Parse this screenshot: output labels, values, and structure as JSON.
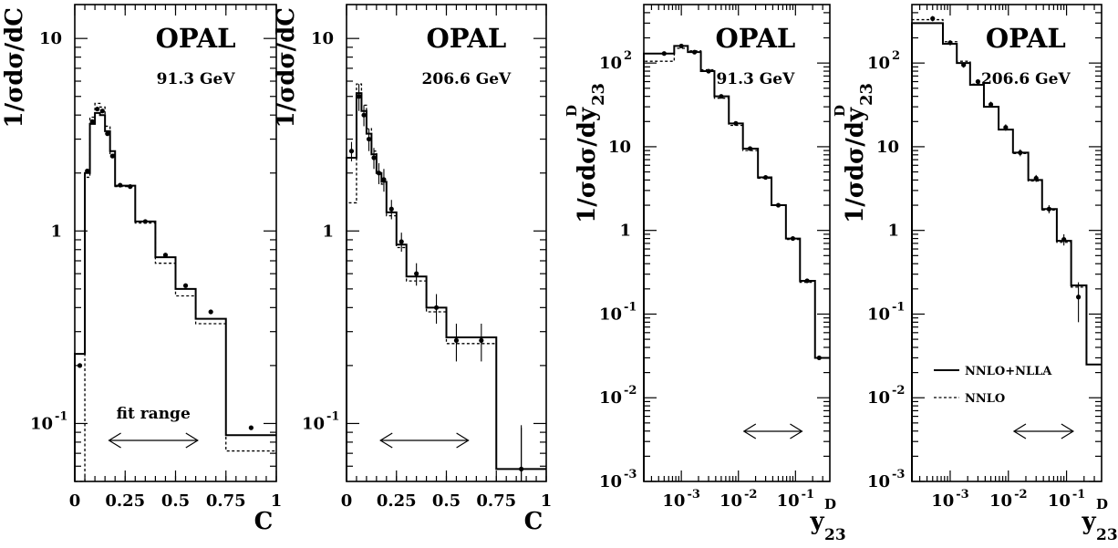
{
  "chart_data": [
    {
      "type": "line",
      "title": "OPAL",
      "subtitle": "91.3 GeV",
      "xlabel": "C",
      "ylabel": "1/σdσ/dC",
      "xlim": [
        0,
        1
      ],
      "ylim": [
        0.05,
        15
      ],
      "yscale": "log",
      "x_ticks": [
        {
          "v": 0,
          "t": "0"
        },
        {
          "v": 0.25,
          "t": "0.25"
        },
        {
          "v": 0.5,
          "t": "0.5"
        },
        {
          "v": 0.75,
          "t": "0.75"
        },
        {
          "v": 1,
          "t": "1"
        }
      ],
      "y_ticks": [
        {
          "v": 0.1,
          "t": "10",
          "exp": "-1"
        },
        {
          "v": 1,
          "t": "1",
          "exp": ""
        },
        {
          "v": 10,
          "t": "10",
          "exp": ""
        }
      ],
      "annotation": "fit range",
      "fit_range": [
        0.17,
        0.61
      ],
      "series": [
        {
          "style": "solid",
          "edges": [
            0,
            0.05,
            0.075,
            0.1,
            0.125,
            0.15,
            0.175,
            0.2,
            0.25,
            0.3,
            0.4,
            0.5,
            0.6,
            0.75,
            1
          ],
          "values": [
            0.23,
            2.0,
            3.6,
            4.1,
            4.0,
            3.3,
            2.6,
            1.72,
            1.72,
            1.12,
            0.73,
            0.5,
            0.35,
            0.087
          ]
        },
        {
          "style": "dashed",
          "edges": [
            0,
            0.05,
            0.075,
            0.1,
            0.125,
            0.15,
            0.175,
            0.2,
            0.25,
            0.3,
            0.4,
            0.5,
            0.6,
            0.75,
            1
          ],
          "values": [
            0.03,
            1.9,
            3.9,
            4.6,
            4.4,
            3.5,
            2.5,
            1.7,
            1.7,
            1.1,
            0.68,
            0.46,
            0.33,
            0.072
          ]
        },
        {
          "style": "points",
          "x": [
            0.025,
            0.062,
            0.087,
            0.112,
            0.137,
            0.162,
            0.187,
            0.225,
            0.275,
            0.35,
            0.45,
            0.55,
            0.675,
            0.875
          ],
          "y": [
            0.2,
            2.05,
            3.7,
            4.3,
            4.2,
            3.2,
            2.45,
            1.73,
            1.7,
            1.12,
            0.75,
            0.52,
            0.38,
            0.095
          ]
        }
      ]
    },
    {
      "type": "line",
      "title": "OPAL",
      "subtitle": "206.6 GeV",
      "xlabel": "C",
      "ylabel": "1/σdσ/dC",
      "xlim": [
        0,
        1
      ],
      "ylim": [
        0.05,
        15
      ],
      "yscale": "log",
      "x_ticks": [
        {
          "v": 0,
          "t": "0"
        },
        {
          "v": 0.25,
          "t": "0.25"
        },
        {
          "v": 0.5,
          "t": "0.5"
        },
        {
          "v": 0.75,
          "t": "0.75"
        },
        {
          "v": 1,
          "t": "1"
        }
      ],
      "y_ticks": [
        {
          "v": 0.1,
          "t": "10",
          "exp": "-1"
        },
        {
          "v": 1,
          "t": "1",
          "exp": ""
        },
        {
          "v": 10,
          "t": "10",
          "exp": ""
        }
      ],
      "fit_range": [
        0.17,
        0.61
      ],
      "series": [
        {
          "style": "solid",
          "edges": [
            0,
            0.05,
            0.075,
            0.1,
            0.125,
            0.15,
            0.175,
            0.2,
            0.25,
            0.3,
            0.4,
            0.5,
            0.6,
            0.75,
            1
          ],
          "values": [
            2.4,
            5.2,
            4.2,
            3.2,
            2.5,
            2.0,
            1.8,
            1.25,
            0.85,
            0.58,
            0.4,
            0.28,
            0.28,
            0.058
          ]
        },
        {
          "style": "dashed",
          "edges": [
            0,
            0.05,
            0.075,
            0.1,
            0.125,
            0.15,
            0.175,
            0.2,
            0.25,
            0.3,
            0.4,
            0.5,
            0.6,
            0.75,
            1
          ],
          "values": [
            1.4,
            5.8,
            4.5,
            3.4,
            2.6,
            2.0,
            1.75,
            1.2,
            0.82,
            0.55,
            0.38,
            0.26,
            0.26,
            0.058
          ]
        },
        {
          "style": "points",
          "x": [
            0.025,
            0.062,
            0.087,
            0.112,
            0.137,
            0.162,
            0.187,
            0.225,
            0.275,
            0.35,
            0.45,
            0.55,
            0.675,
            0.875
          ],
          "y": [
            2.6,
            5.0,
            4.0,
            3.0,
            2.4,
            2.0,
            1.85,
            1.3,
            0.88,
            0.6,
            0.4,
            0.27,
            0.27,
            0.058
          ],
          "err": [
            0.3,
            0.8,
            0.5,
            0.4,
            0.3,
            0.25,
            0.25,
            0.15,
            0.1,
            0.08,
            0.07,
            0.06,
            0.06,
            0.04
          ]
        }
      ]
    },
    {
      "type": "line",
      "title": "OPAL",
      "subtitle": "91.3 GeV",
      "xlabel": "y",
      "xlabel_sub": "23",
      "xlabel_sup": "D",
      "ylabel": "1/σdσ/dy",
      "ylabel_sub": "23",
      "ylabel_sup": "D",
      "xlim": [
        0.00022,
        0.4
      ],
      "ylim": [
        0.001,
        500
      ],
      "xscale": "log",
      "yscale": "log",
      "x_ticks": [
        {
          "v": 0.001,
          "t": "10",
          "exp": "-3"
        },
        {
          "v": 0.01,
          "t": "10",
          "exp": "-2"
        },
        {
          "v": 0.1,
          "t": "10",
          "exp": "-1"
        }
      ],
      "y_ticks": [
        {
          "v": 0.001,
          "t": "10",
          "exp": "-3"
        },
        {
          "v": 0.01,
          "t": "10",
          "exp": "-2"
        },
        {
          "v": 0.1,
          "t": "10",
          "exp": "-1"
        },
        {
          "v": 1,
          "t": "1",
          "exp": ""
        },
        {
          "v": 10,
          "t": "10",
          "exp": ""
        },
        {
          "v": 100,
          "t": "10",
          "exp": "2"
        }
      ],
      "fit_range": [
        0.0125,
        0.13
      ],
      "series": [
        {
          "style": "solid",
          "edges": [
            0.00022,
            0.00075,
            0.0013,
            0.0022,
            0.0038,
            0.0068,
            0.012,
            0.022,
            0.038,
            0.068,
            0.12,
            0.22,
            0.3,
            0.4
          ],
          "values": [
            130,
            160,
            135,
            80,
            40,
            19,
            9.5,
            4.3,
            2.0,
            0.8,
            0.25,
            0.03,
            0.03
          ]
        },
        {
          "style": "dashed",
          "edges": [
            0.00022,
            0.00075,
            0.0013,
            0.0022,
            0.0038,
            0.0068,
            0.012,
            0.022,
            0.038,
            0.068,
            0.12,
            0.22,
            0.3,
            0.4
          ],
          "values": [
            105,
            150,
            140,
            83,
            38,
            18,
            9,
            4.2,
            2.0,
            0.78,
            0.24,
            0.03,
            0.03
          ]
        },
        {
          "style": "points",
          "x": [
            0.0005,
            0.001,
            0.0017,
            0.003,
            0.005,
            0.009,
            0.016,
            0.03,
            0.05,
            0.09,
            0.16,
            0.26
          ],
          "y": [
            130,
            160,
            135,
            80,
            40,
            19,
            9.5,
            4.3,
            2.0,
            0.8,
            0.25,
            0.03
          ]
        }
      ]
    },
    {
      "type": "line",
      "title": "OPAL",
      "subtitle": "206.6 GeV",
      "xlabel": "y",
      "xlabel_sub": "23",
      "xlabel_sup": "D",
      "ylabel": "1/σdσ/dy",
      "ylabel_sub": "23",
      "ylabel_sup": "D",
      "xlim": [
        0.00022,
        0.4
      ],
      "ylim": [
        0.001,
        500
      ],
      "xscale": "log",
      "yscale": "log",
      "x_ticks": [
        {
          "v": 0.001,
          "t": "10",
          "exp": "-3"
        },
        {
          "v": 0.01,
          "t": "10",
          "exp": "-2"
        },
        {
          "v": 0.1,
          "t": "10",
          "exp": "-1"
        }
      ],
      "y_ticks": [
        {
          "v": 0.001,
          "t": "10",
          "exp": "-3"
        },
        {
          "v": 0.01,
          "t": "10",
          "exp": "-2"
        },
        {
          "v": 0.1,
          "t": "10",
          "exp": "-1"
        },
        {
          "v": 1,
          "t": "1",
          "exp": ""
        },
        {
          "v": 10,
          "t": "10",
          "exp": ""
        },
        {
          "v": 100,
          "t": "10",
          "exp": "2"
        }
      ],
      "fit_range": [
        0.0125,
        0.13
      ],
      "legend": [
        {
          "label": "NNLO+NLLA",
          "style": "solid"
        },
        {
          "label": "NNLO",
          "style": "dashed"
        }
      ],
      "legend_position": "bottom-right",
      "series": [
        {
          "style": "solid",
          "edges": [
            0.00022,
            0.00075,
            0.0013,
            0.0022,
            0.0038,
            0.0068,
            0.012,
            0.022,
            0.038,
            0.068,
            0.12,
            0.22,
            0.3,
            0.4
          ],
          "values": [
            300,
            170,
            100,
            55,
            30,
            16,
            8.5,
            4.0,
            1.8,
            0.75,
            0.22,
            0.025,
            0.025
          ]
        },
        {
          "style": "dashed",
          "edges": [
            0.00022,
            0.00075,
            0.0013,
            0.0022,
            0.0038,
            0.0068,
            0.012,
            0.022,
            0.038,
            0.068,
            0.12,
            0.22,
            0.3,
            0.4
          ],
          "values": [
            330,
            180,
            105,
            56,
            30,
            16,
            8.3,
            3.9,
            1.75,
            0.72,
            0.21,
            0.025,
            0.025
          ]
        },
        {
          "style": "points",
          "x": [
            0.0005,
            0.001,
            0.0017,
            0.003,
            0.005,
            0.009,
            0.016,
            0.03,
            0.05,
            0.09,
            0.16
          ],
          "y": [
            340,
            175,
            95,
            60,
            32,
            17,
            8.5,
            4.2,
            1.8,
            0.78,
            0.16
          ],
          "err": [
            25,
            12,
            7,
            4,
            2.5,
            1.5,
            0.8,
            0.4,
            0.2,
            0.12,
            0.08
          ]
        }
      ]
    }
  ]
}
